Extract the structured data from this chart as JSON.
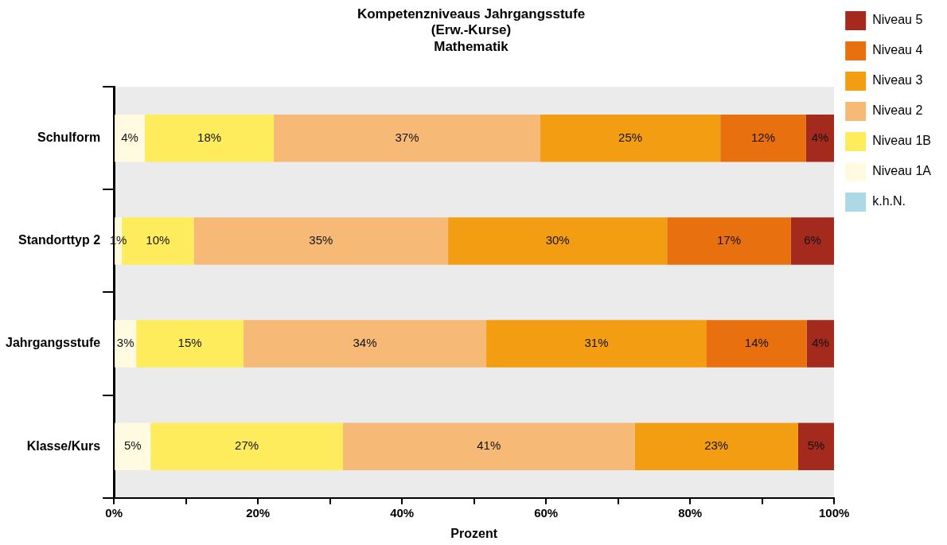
{
  "chart_data": {
    "type": "bar",
    "orientation": "horizontal",
    "stacked": true,
    "title": [
      "Kompetenzniveaus Jahrgangsstufe",
      "(Erw.-Kurse)",
      "Mathematik"
    ],
    "xlabel": "Prozent",
    "categories": [
      "Schulform",
      "Standorttyp 2",
      "Jahrgangsstufe",
      "Klasse/Kurs"
    ],
    "series": [
      {
        "name": "k.h.N.",
        "color": "#add8e6",
        "values": [
          0,
          0,
          0,
          0
        ],
        "value_labels": [
          null,
          null,
          null,
          null
        ]
      },
      {
        "name": "Niveau 1A",
        "color": "#fffae0",
        "values": [
          4.3,
          1.1,
          3.1,
          5.1
        ],
        "value_labels": [
          "4%",
          "1%",
          "3%",
          "5%"
        ]
      },
      {
        "name": "Niveau 1B",
        "color": "#ffec5c",
        "values": [
          17.9,
          10.0,
          14.9,
          26.7
        ],
        "value_labels": [
          "18%",
          "10%",
          "15%",
          "27%"
        ]
      },
      {
        "name": "Niveau 2",
        "color": "#f7b976",
        "values": [
          37.0,
          35.3,
          33.7,
          40.5
        ],
        "value_labels": [
          "37%",
          "35%",
          "34%",
          "41%"
        ]
      },
      {
        "name": "Niveau 3",
        "color": "#f29d12",
        "values": [
          25.0,
          30.4,
          30.6,
          22.7
        ],
        "value_labels": [
          "25%",
          "30%",
          "31%",
          "23%"
        ]
      },
      {
        "name": "Niveau 4",
        "color": "#e8700e",
        "values": [
          11.9,
          17.2,
          13.9,
          0
        ],
        "value_labels": [
          "12%",
          "17%",
          "14%",
          null
        ]
      },
      {
        "name": "Niveau 5",
        "color": "#a52a1e",
        "values": [
          3.9,
          6.0,
          3.8,
          5.0
        ],
        "value_labels": [
          "4%",
          "6%",
          "4%",
          "5%"
        ]
      }
    ],
    "xlim": [
      0,
      100
    ],
    "xticks": [
      {
        "value": 0,
        "label": "0%"
      },
      {
        "value": 10,
        "label": null
      },
      {
        "value": 20,
        "label": "20%"
      },
      {
        "value": 30,
        "label": null
      },
      {
        "value": 40,
        "label": "40%"
      },
      {
        "value": 50,
        "label": null
      },
      {
        "value": 60,
        "label": "60%"
      },
      {
        "value": 70,
        "label": null
      },
      {
        "value": 80,
        "label": "80%"
      },
      {
        "value": 90,
        "label": null
      },
      {
        "value": 100,
        "label": "100%"
      }
    ],
    "grid": false,
    "legend": "right"
  }
}
